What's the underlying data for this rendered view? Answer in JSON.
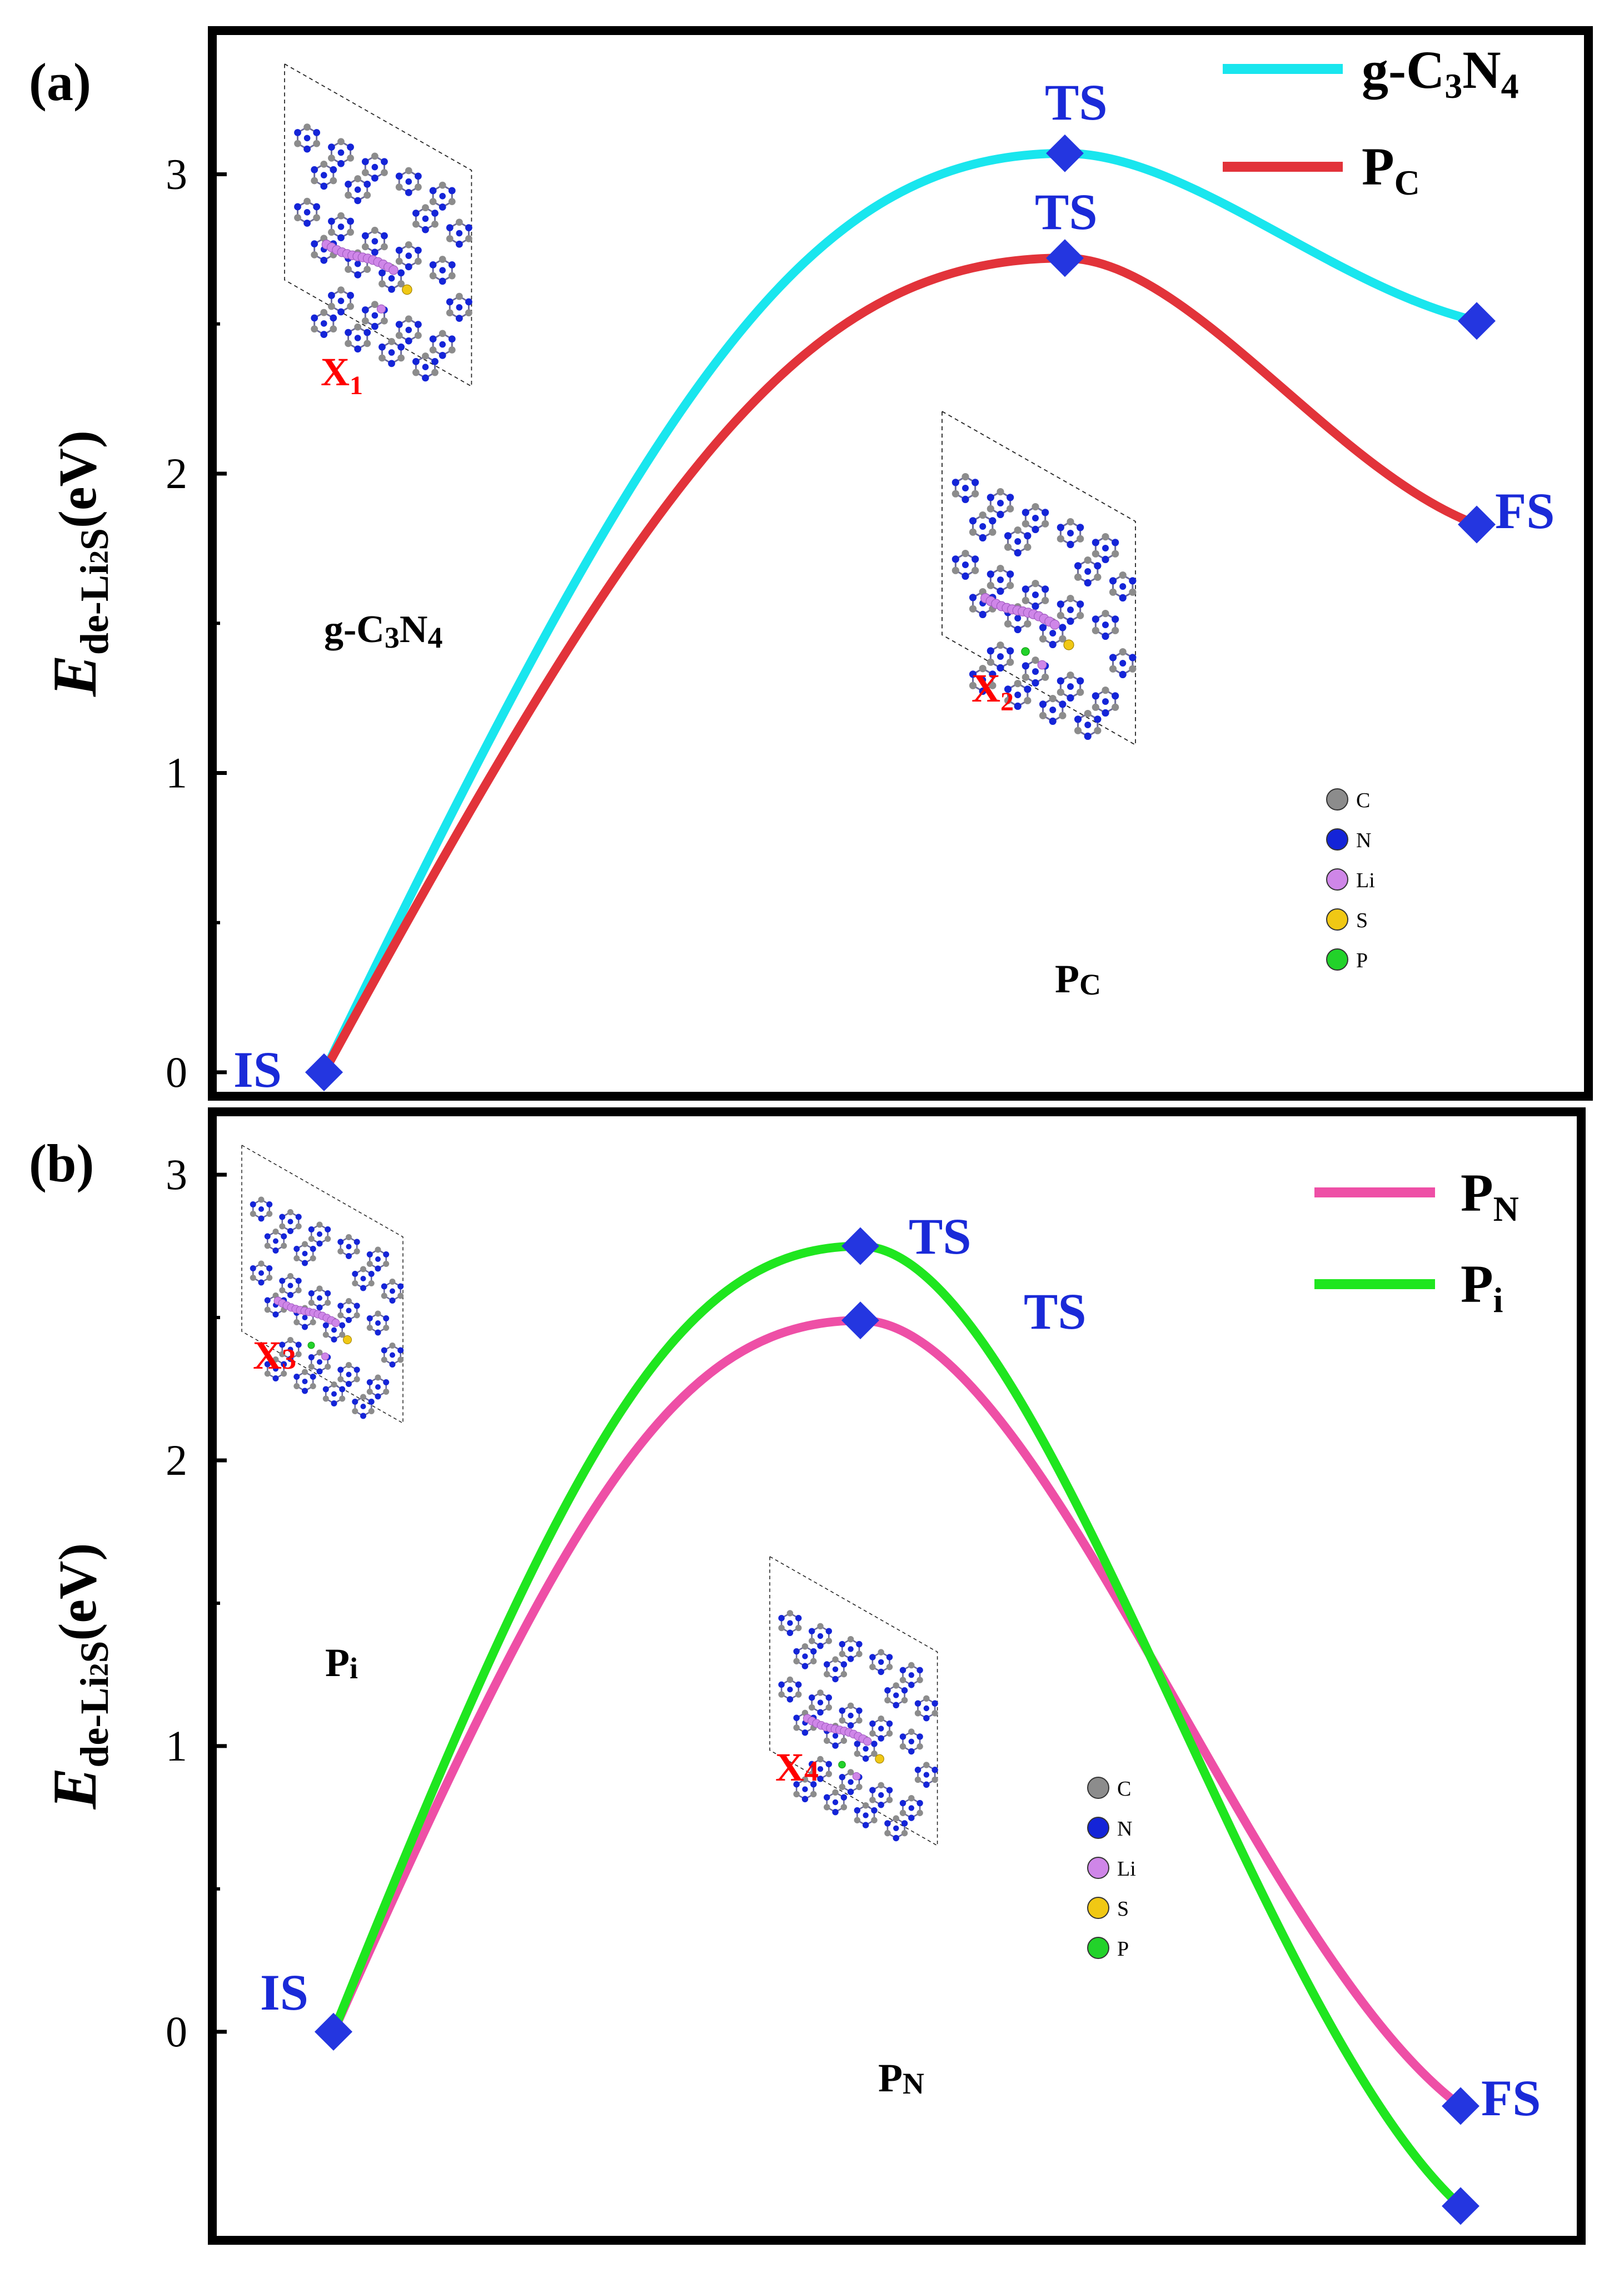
{
  "figure": {
    "panel_labels": [
      "(a)",
      "(b)"
    ]
  },
  "colors": {
    "axis": "#000000",
    "marker": "#2436e0",
    "ts_label": "#1a2ad8",
    "g_c3n4": "#19e6ee",
    "p_c": "#e2333a",
    "p_n": "#ee4fa6",
    "p_i": "#1fe61f",
    "atom_C": "#8c8c8c",
    "atom_N": "#1424d8",
    "atom_Li": "#cf86e8",
    "atom_S": "#f0c814",
    "atom_P": "#22d22a",
    "site_label": "#ff0000"
  },
  "chart_data": [
    {
      "panel": "(a)",
      "type": "line",
      "ylabel": {
        "E": "E",
        "sub": "de-Li",
        "sub2": "2",
        "sub3": "S",
        "unit": "(eV)"
      },
      "ylim": [
        -0.08,
        3.48
      ],
      "yticks": [
        0,
        1,
        2,
        3
      ],
      "x": [
        0,
        1,
        2
      ],
      "series": [
        {
          "name": "g-C3N4",
          "label_main": "g-C",
          "label_sub1": "3",
          "label_mid": "N",
          "label_sub2": "4",
          "values": [
            0,
            3.07,
            2.51
          ],
          "color_key": "g_c3n4"
        },
        {
          "name": "PC",
          "label_main": "P",
          "label_sub1": "C",
          "label_mid": "",
          "label_sub2": "",
          "values": [
            0,
            2.72,
            1.83
          ],
          "color_key": "p_c"
        }
      ],
      "point_labels": {
        "is": "IS",
        "ts": "TS",
        "fs": "FS"
      },
      "structures": [
        {
          "name": "g-C3N4",
          "caption_main": "g-C",
          "caption_sub1": "3",
          "caption_mid": "N",
          "caption_sub2": "4",
          "site": "X",
          "site_sub": "1"
        },
        {
          "name": "PC",
          "caption_main": "P",
          "caption_sub1": "C",
          "caption_mid": "",
          "caption_sub2": "",
          "site": "X",
          "site_sub": "2"
        }
      ],
      "atom_legend": [
        "C",
        "N",
        "Li",
        "S",
        "P"
      ]
    },
    {
      "panel": "(b)",
      "type": "line",
      "ylabel": {
        "E": "E",
        "sub": "de-Li",
        "sub2": "2",
        "sub3": "S",
        "unit": "(eV)"
      },
      "ylim": [
        -0.73,
        3.22
      ],
      "yticks": [
        0,
        1,
        2,
        3
      ],
      "x": [
        0,
        1,
        2
      ],
      "series": [
        {
          "name": "PN",
          "label_main": "P",
          "label_sub1": "N",
          "values": [
            0,
            2.49,
            -0.26
          ],
          "color_key": "p_n"
        },
        {
          "name": "Pi",
          "label_main": "P",
          "label_sub1": "i",
          "values": [
            0,
            2.75,
            -0.61
          ],
          "color_key": "p_i"
        }
      ],
      "point_labels": {
        "is": "IS",
        "ts": "TS",
        "fs": "FS"
      },
      "structures": [
        {
          "name": "Pi",
          "caption_main": "P",
          "caption_sub1": "i",
          "site": "X",
          "site_sub": "3"
        },
        {
          "name": "PN",
          "caption_main": "P",
          "caption_sub1": "N",
          "site": "X",
          "site_sub": "4"
        }
      ],
      "atom_legend": [
        "C",
        "N",
        "Li",
        "S",
        "P"
      ]
    }
  ]
}
